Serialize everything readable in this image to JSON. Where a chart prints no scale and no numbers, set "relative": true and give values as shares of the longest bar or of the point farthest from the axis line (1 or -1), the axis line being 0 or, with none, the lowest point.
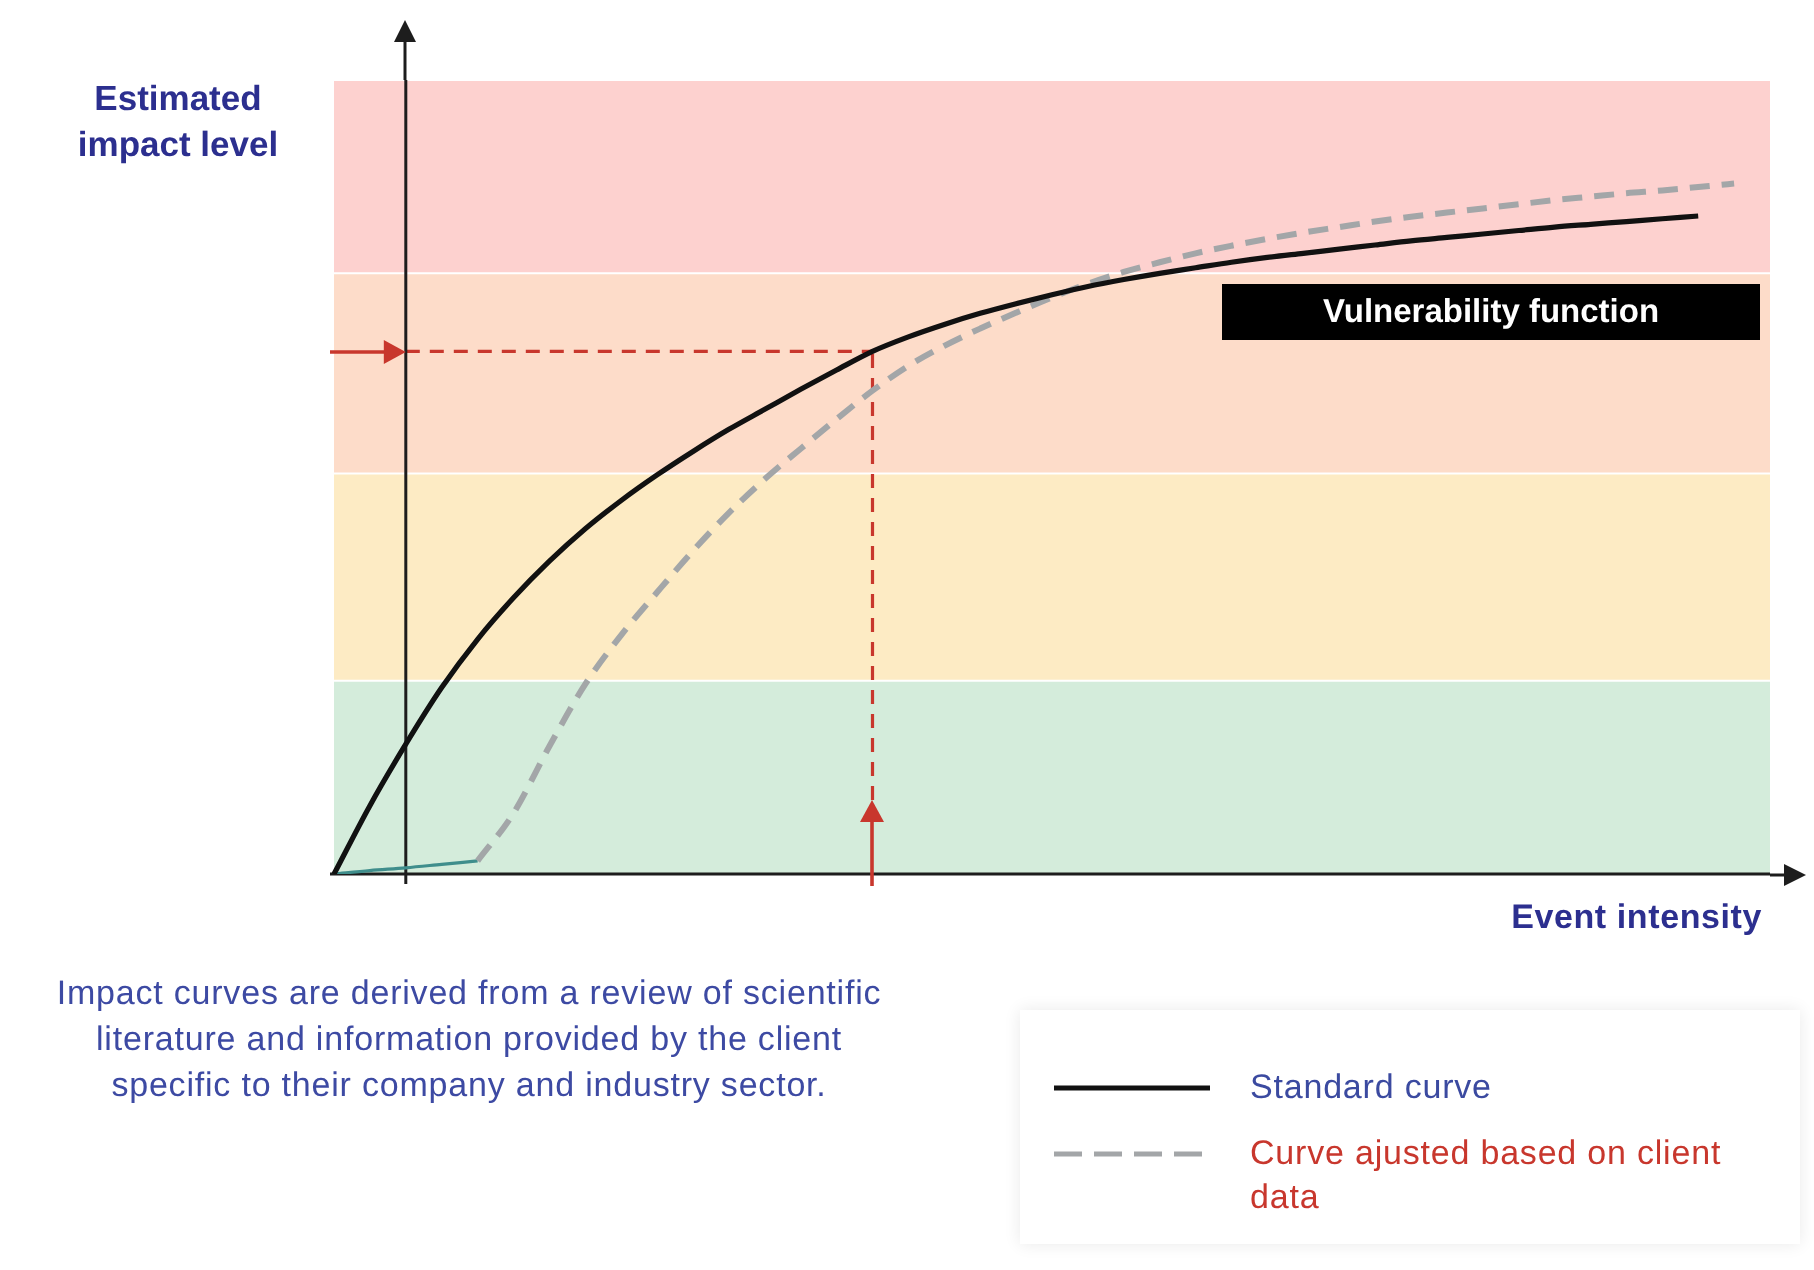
{
  "chart_data": {
    "type": "line",
    "relative": true,
    "xlabel": "Event intensity",
    "ylabel": "Estimated impact level",
    "categories": [
      null,
      null,
      null,
      null,
      null,
      null,
      null,
      null,
      null,
      null,
      null,
      null,
      null,
      null,
      null,
      null,
      null,
      null,
      null,
      null,
      null,
      null,
      null,
      null,
      null,
      null,
      null,
      null,
      null,
      null,
      null,
      null,
      null,
      null,
      null,
      null,
      null,
      null,
      null,
      null,
      null
    ],
    "series": [
      {
        "name": "Standard curve",
        "color": "#111111",
        "line_style": "solid",
        "values": [
          0,
          0.099,
          0.188,
          0.27,
          0.34,
          0.4,
          0.453,
          0.5,
          0.541,
          0.578,
          0.612,
          0.644,
          0.673,
          0.702,
          0.73,
          0.757,
          0.778,
          0.796,
          0.812,
          0.826,
          0.839,
          0.851,
          0.861,
          0.87,
          0.878,
          0.886,
          0.893,
          0.899,
          0.905,
          0.911,
          0.917,
          0.922,
          0.927,
          0.932,
          0.937,
          0.941,
          0.945,
          0.949,
          0.953,
          null,
          null
        ]
      },
      {
        "name": "Curve ajusted based on client data",
        "color": "#a3a6a8",
        "line_style": "dashed",
        "values": [
          null,
          null,
          null,
          null,
          0.019,
          0.088,
          0.185,
          0.275,
          0.346,
          0.408,
          0.468,
          0.523,
          0.572,
          0.616,
          0.659,
          0.7,
          0.736,
          0.765,
          0.79,
          0.813,
          0.835,
          0.855,
          0.872,
          0.886,
          0.899,
          0.91,
          0.92,
          0.929,
          0.937,
          0.945,
          0.952,
          0.958,
          0.964,
          0.97,
          0.976,
          0.981,
          0.986,
          0.99,
          0.995,
          1,
          null
        ]
      },
      {
        "color": "#3f8e8c",
        "line_style": "solid",
        "values": [
          0,
          0.005,
          0.009,
          0.014,
          0.019,
          null,
          null,
          null,
          null,
          null,
          null,
          null,
          null,
          null,
          null,
          null,
          null,
          null,
          null,
          null,
          null,
          null,
          null,
          null,
          null,
          null,
          null,
          null,
          null,
          null,
          null,
          null,
          null,
          null,
          null,
          null,
          null,
          null,
          null,
          null,
          null
        ]
      }
    ],
    "bands": [
      {
        "axis": "y",
        "from": 0,
        "to": 0.28,
        "color": "#d4ecdb"
      },
      {
        "axis": "y",
        "from": 0.28,
        "to": 0.58,
        "color": "#fdebc4"
      },
      {
        "axis": "y",
        "from": 0.58,
        "to": 0.87,
        "color": "#fddcc9"
      },
      {
        "axis": "y",
        "from": 0.87,
        "to": 1.15,
        "color": "#fdd1cf"
      }
    ],
    "ref_lines": [
      {
        "axis": "y",
        "value": 0.757,
        "color": "#c8372d",
        "line_style": "dashed"
      }
    ],
    "annotations": [
      "Vulnerability function",
      "Impact curves are derived from a review of scientific literature and information provided by the client specific to their company and industry sector."
    ],
    "legend": "bottom right",
    "marker": "none",
    "grid": false,
    "tick_labels": false
  }
}
